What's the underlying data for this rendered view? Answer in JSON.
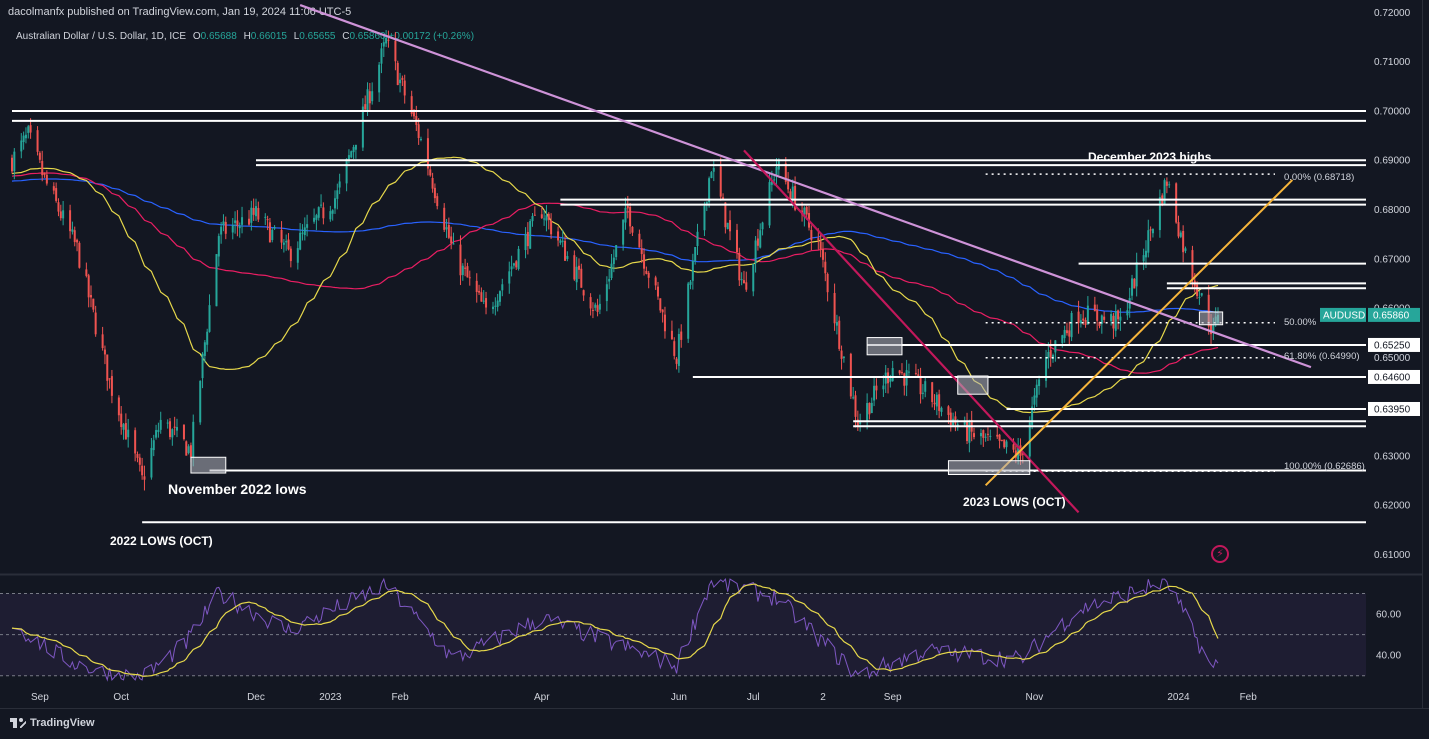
{
  "publisher_line": "dacolmanfx published on TradingView.com, Jan 19, 2024 11:06 UTC-5",
  "legend": {
    "symbol": "Australian Dollar / U.S. Dollar, 1D, ICE",
    "o_label": "O",
    "o_value": "0.65688",
    "h_label": "H",
    "h_value": "0.66015",
    "l_label": "L",
    "l_value": "0.65655",
    "c_label": "C",
    "c_value": "0.65860",
    "change": "+0.00172 (+0.26%)"
  },
  "footer": {
    "brand": "TradingView"
  },
  "colors": {
    "background": "#131722",
    "up": "#26a69a",
    "down": "#ef5350",
    "sma_fast": "#e6d84b",
    "sma_mid": "#e91e63",
    "sma_slow": "#2962ff",
    "trend_down": "#ce93d8",
    "trend_up": "#f7b53b",
    "trend_steep": "#c2185b",
    "rsi": "#7e57c2",
    "rsi_ma": "#e6d84b"
  },
  "chart_data": [
    {
      "type": "candlestick",
      "title": "",
      "ylim": [
        0.606,
        0.7205
      ],
      "y_ticks": [
        "0.72000",
        "0.71000",
        "0.70000",
        "0.69000",
        "0.68000",
        "0.67000",
        "0.66000",
        "0.65000",
        "0.64000",
        "0.63000",
        "0.62000",
        "0.61000"
      ],
      "x_ticks": [
        "Sep",
        "Oct",
        "Dec",
        "2023",
        "Feb",
        "Apr",
        "Jun",
        "Jul",
        "2",
        "Sep",
        "Nov",
        "2024",
        "Feb"
      ],
      "price_tag": {
        "symbol": "AUDUSD",
        "value": "0.65860"
      },
      "level_tags": [
        "0.65250",
        "0.64600",
        "0.63950"
      ],
      "fib_labels": [
        "0.00% (0.68718)",
        "50.00%",
        "61.80% (0.64990)",
        "100.00% (0.62686)"
      ],
      "annotations": [
        "December 2023 highs",
        "November 2022 lows",
        "2022 LOWS (OCT)",
        "2023 LOWS (OCT)"
      ],
      "horizontal_levels": [
        0.7,
        0.698,
        0.69,
        0.689,
        0.682,
        0.681,
        0.669,
        0.665,
        0.664,
        0.6525,
        0.646,
        0.6395,
        0.637,
        0.636,
        0.627,
        0.6165
      ],
      "anchor_closes": [
        {
          "d": "2022-08-18",
          "c": 0.69
        },
        {
          "d": "2022-08-25",
          "c": 0.695
        },
        {
          "d": "2022-09-01",
          "c": 0.686
        },
        {
          "d": "2022-09-15",
          "c": 0.672
        },
        {
          "d": "2022-09-29",
          "c": 0.645
        },
        {
          "d": "2022-10-13",
          "c": 0.625
        },
        {
          "d": "2022-10-21",
          "c": 0.637
        },
        {
          "d": "2022-11-03",
          "c": 0.631
        },
        {
          "d": "2022-11-15",
          "c": 0.675
        },
        {
          "d": "2022-12-01",
          "c": 0.679
        },
        {
          "d": "2022-12-15",
          "c": 0.671
        },
        {
          "d": "2023-01-05",
          "c": 0.683
        },
        {
          "d": "2023-01-26",
          "c": 0.714
        },
        {
          "d": "2023-02-10",
          "c": 0.694
        },
        {
          "d": "2023-02-24",
          "c": 0.671
        },
        {
          "d": "2023-03-10",
          "c": 0.659
        },
        {
          "d": "2023-04-03",
          "c": 0.68
        },
        {
          "d": "2023-04-27",
          "c": 0.659
        },
        {
          "d": "2023-05-10",
          "c": 0.68
        },
        {
          "d": "2023-05-31",
          "c": 0.65
        },
        {
          "d": "2023-06-15",
          "c": 0.689
        },
        {
          "d": "2023-06-29",
          "c": 0.664
        },
        {
          "d": "2023-07-13",
          "c": 0.689
        },
        {
          "d": "2023-07-31",
          "c": 0.673
        },
        {
          "d": "2023-08-17",
          "c": 0.637
        },
        {
          "d": "2023-09-01",
          "c": 0.648
        },
        {
          "d": "2023-09-15",
          "c": 0.643
        },
        {
          "d": "2023-10-02",
          "c": 0.635
        },
        {
          "d": "2023-10-26",
          "c": 0.63
        },
        {
          "d": "2023-11-06",
          "c": 0.65
        },
        {
          "d": "2023-11-20",
          "c": 0.659
        },
        {
          "d": "2023-12-08",
          "c": 0.657
        },
        {
          "d": "2023-12-28",
          "c": 0.686
        },
        {
          "d": "2024-01-05",
          "c": 0.671
        },
        {
          "d": "2024-01-17",
          "c": 0.655
        },
        {
          "d": "2024-01-19",
          "c": 0.6586
        }
      ]
    },
    {
      "type": "line",
      "title": "",
      "ylim": [
        26,
        78
      ],
      "y_ticks": [
        "60.00",
        "40.00"
      ],
      "band": [
        30,
        70
      ],
      "anchors": [
        {
          "d": "2022-08-18",
          "v": 55
        },
        {
          "d": "2022-09-10",
          "v": 38
        },
        {
          "d": "2022-09-25",
          "v": 32
        },
        {
          "d": "2022-10-13",
          "v": 29
        },
        {
          "d": "2022-11-01",
          "v": 46
        },
        {
          "d": "2022-11-15",
          "v": 70
        },
        {
          "d": "2022-12-15",
          "v": 52
        },
        {
          "d": "2023-01-26",
          "v": 74
        },
        {
          "d": "2023-02-24",
          "v": 38
        },
        {
          "d": "2023-04-03",
          "v": 58
        },
        {
          "d": "2023-05-31",
          "v": 35
        },
        {
          "d": "2023-06-15",
          "v": 76
        },
        {
          "d": "2023-07-13",
          "v": 68
        },
        {
          "d": "2023-08-17",
          "v": 30
        },
        {
          "d": "2023-09-15",
          "v": 42
        },
        {
          "d": "2023-10-26",
          "v": 38
        },
        {
          "d": "2023-11-20",
          "v": 62
        },
        {
          "d": "2023-12-28",
          "v": 76
        },
        {
          "d": "2024-01-17",
          "v": 32
        },
        {
          "d": "2024-01-19",
          "v": 38
        }
      ]
    }
  ]
}
